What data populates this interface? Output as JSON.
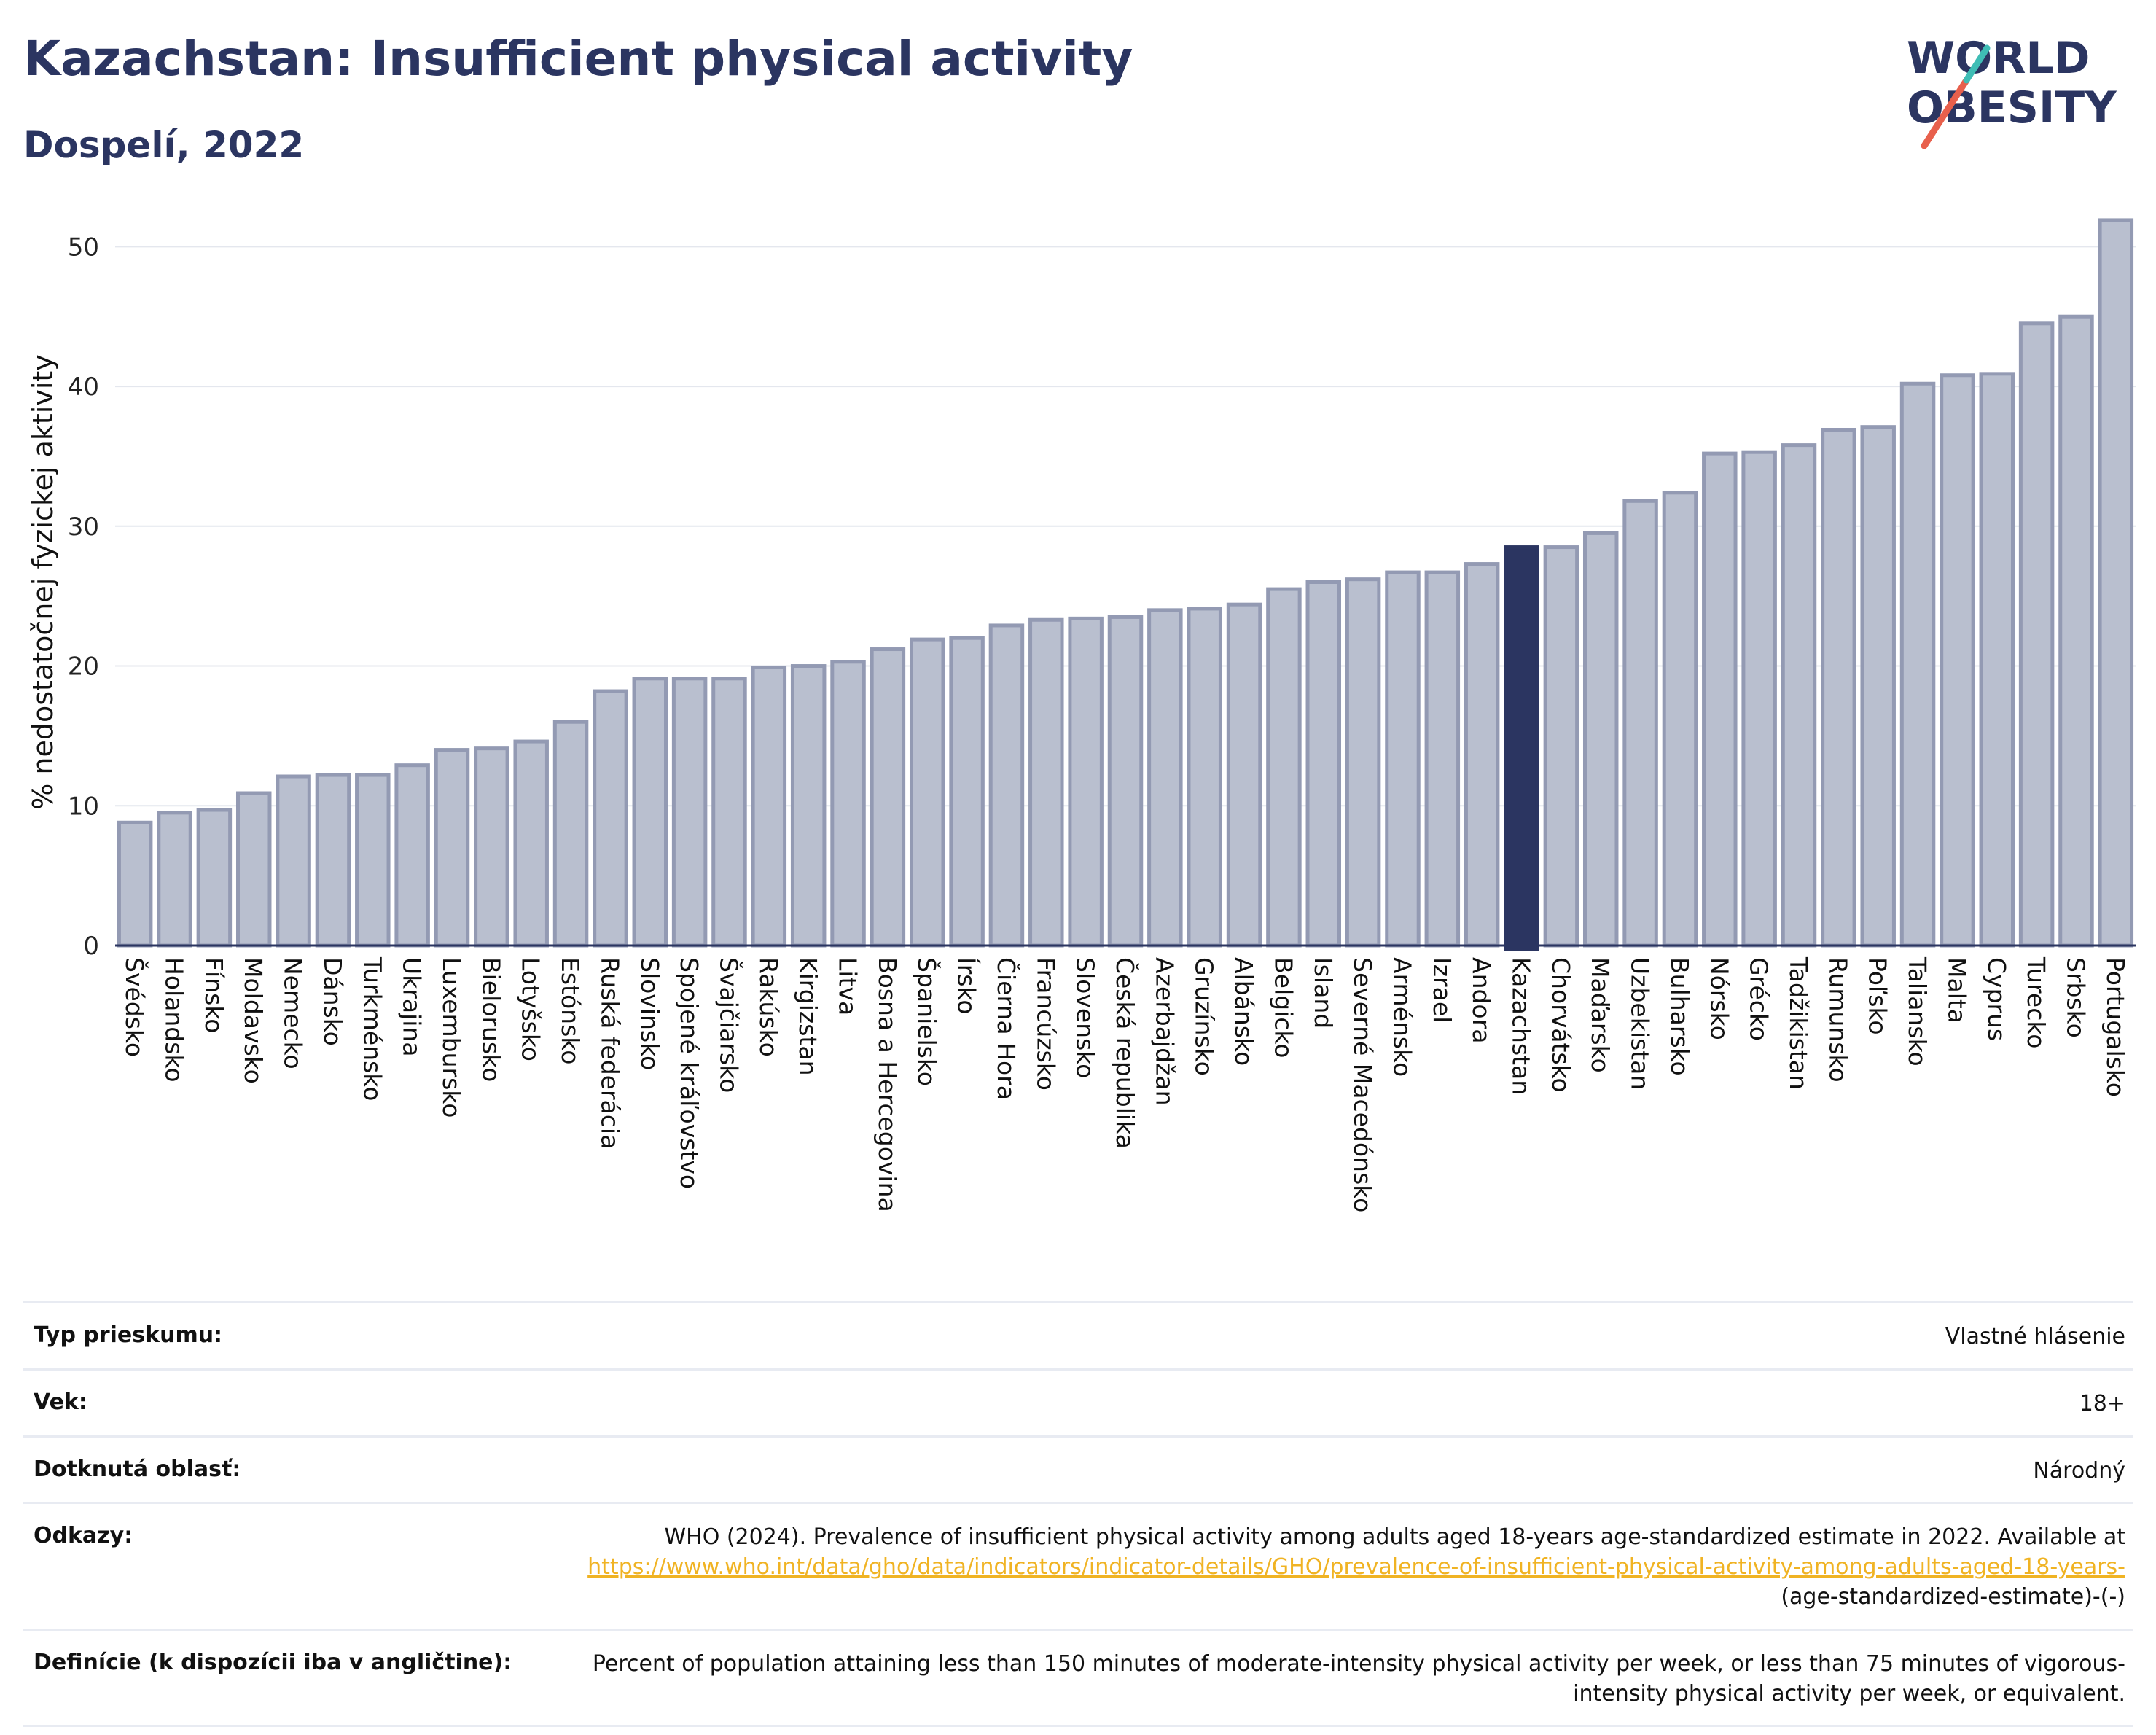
{
  "header": {
    "title": "Kazachstan: Insufficient physical activity",
    "subtitle": "Dospelí, 2022"
  },
  "logo": {
    "line1": "WORLD",
    "line2": "OBESITY"
  },
  "colors": {
    "bar": "#b9bfcf",
    "bar_border": "#939ab3",
    "highlight": "#2b3561",
    "grid": "#e4e7ee",
    "title": "#2b3561",
    "link": "#f0b323",
    "logo_red": "#e8604c",
    "logo_teal": "#3fbdb5"
  },
  "chart_data": {
    "type": "bar",
    "ylabel": "% nedostatočnej fyzickej aktivity",
    "ylim": [
      0,
      52
    ],
    "yticks": [
      0,
      10,
      20,
      30,
      40,
      50
    ],
    "grid": true,
    "highlight": "Kazachstan",
    "categories": [
      "Švédsko",
      "Holandsko",
      "Fínsko",
      "Moldavsko",
      "Nemecko",
      "Dánsko",
      "Turkménsko",
      "Ukrajina",
      "Luxembursko",
      "Bielorusko",
      "Lotyšsko",
      "Estónsko",
      "Ruská federácia",
      "Slovinsko",
      "Spojené kráľovstvo",
      "Švajčiarsko",
      "Rakúsko",
      "Kirgizstan",
      "Litva",
      "Bosna a Hercegovina",
      "Španielsko",
      "Írsko",
      "Čierna Hora",
      "Francúzsko",
      "Slovensko",
      "Česká republika",
      "Azerbajdžan",
      "Gruzínsko",
      "Albánsko",
      "Belgicko",
      "Island",
      "Severné Macedónsko",
      "Arménsko",
      "Izrael",
      "Andora",
      "Kazachstan",
      "Chorvátsko",
      "Maďarsko",
      "Uzbekistan",
      "Bulharsko",
      "Nórsko",
      "Grécko",
      "Tadžikistan",
      "Rumunsko",
      "Poľsko",
      "Taliansko",
      "Malta",
      "Cyprus",
      "Turecko",
      "Srbsko",
      "Portugalsko"
    ],
    "values": [
      8.8,
      9.5,
      9.7,
      10.9,
      12.1,
      12.2,
      12.2,
      12.9,
      14.0,
      14.1,
      14.6,
      16.0,
      18.2,
      19.1,
      19.1,
      19.1,
      19.9,
      20.0,
      20.3,
      21.2,
      21.9,
      22.0,
      22.9,
      23.3,
      23.4,
      23.5,
      24.0,
      24.1,
      24.4,
      25.5,
      26.0,
      26.2,
      26.7,
      26.7,
      27.3,
      28.5,
      28.5,
      29.5,
      31.8,
      32.4,
      35.2,
      35.3,
      35.8,
      36.9,
      37.1,
      40.2,
      40.8,
      40.9,
      44.5,
      45.0,
      51.9
    ]
  },
  "info": {
    "survey_label": "Typ prieskumu:",
    "survey_value": "Vlastné hlásenie",
    "age_label": "Vek:",
    "age_value": "18+",
    "area_label": "Dotknutá oblasť:",
    "area_value": "Národný",
    "refs_label": "Odkazy:",
    "refs_text": "WHO (2024). Prevalence of insufficient physical activity among adults aged 18-years age-standardized estimate in 2022. Available at",
    "refs_link": "https://www.who.int/data/gho/data/indicators/indicator-details/GHO/prevalence-of-insufficient-physical-activity-among-adults-aged-18-years-",
    "refs_tail": "(age-standardized-estimate)-(-)",
    "def_label": "Definície (k dispozícii iba v angličtine):",
    "def_value": "Percent of population attaining less than 150 minutes of moderate-intensity physical activity per week, or less than 75 minutes of vigorous-intensity physical activity per week, or equivalent."
  }
}
